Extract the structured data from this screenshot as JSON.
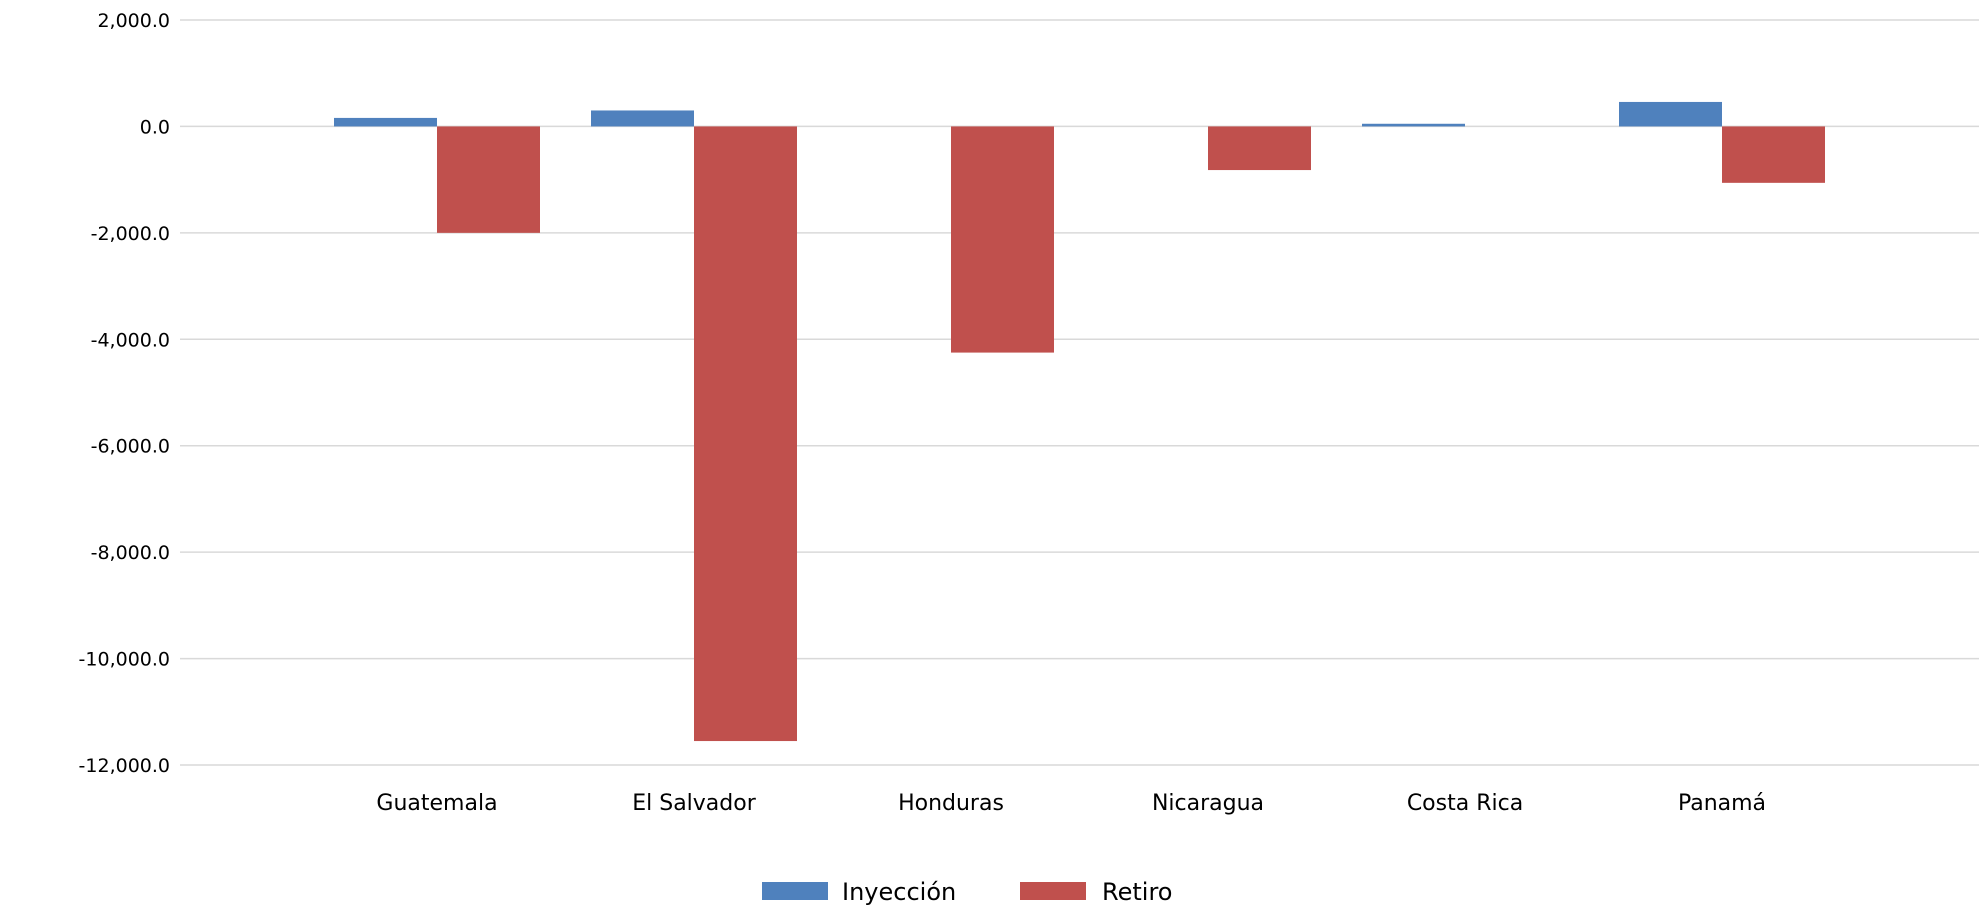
{
  "chart_data": {
    "type": "bar",
    "title": "",
    "xlabel": "",
    "ylabel": "",
    "categories": [
      "Guatemala",
      "El Salvador",
      "Honduras",
      "Nicaragua",
      "Costa Rica",
      "Panamá"
    ],
    "series": [
      {
        "name": "Inyección",
        "color": "#4f81bd",
        "values": [
          160,
          300,
          0,
          0,
          50,
          460
        ]
      },
      {
        "name": "Retiro",
        "color": "#c0504d",
        "values": [
          -2000,
          -11550,
          -4250,
          -820,
          0,
          -1060
        ]
      }
    ],
    "ylim": [
      -12000,
      2000
    ],
    "yticks": [
      2000,
      0,
      -2000,
      -4000,
      -6000,
      -8000,
      -10000,
      -12000
    ],
    "ytick_labels": [
      "2,000.0",
      "0.0",
      "-2,000.0",
      "-4,000.0",
      "-6,000.0",
      "-8,000.0",
      "-10,000.0",
      "-12,000.0"
    ],
    "grid": true,
    "legend_position": "bottom"
  }
}
